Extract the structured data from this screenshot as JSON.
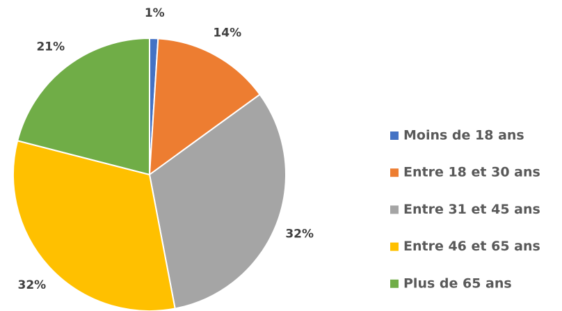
{
  "chart_data": {
    "type": "pie",
    "categories": [
      "Moins de 18 ans",
      "Entre 18 et 30 ans",
      "Entre 31 et 45 ans",
      "Entre 46 et 65 ans",
      "Plus de 65 ans"
    ],
    "values": [
      1,
      14,
      32,
      32,
      21
    ],
    "value_labels": [
      "1%",
      "14%",
      "32%",
      "32%",
      "21%"
    ],
    "colors": [
      "#4472c4",
      "#ed7d31",
      "#a5a5a5",
      "#ffc000",
      "#70ad47"
    ],
    "legend": "right"
  }
}
